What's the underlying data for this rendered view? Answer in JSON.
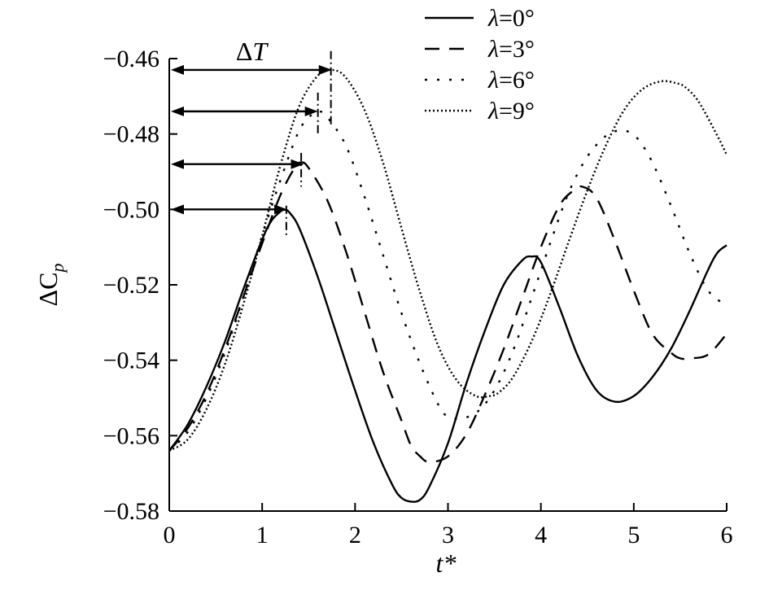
{
  "chart_data": {
    "type": "line",
    "title": "",
    "xlabel": "t*",
    "ylabel": "ΔCp",
    "ylabel_main": "ΔC",
    "ylabel_sub": "p",
    "xlim": [
      0,
      6
    ],
    "ylim": [
      -0.58,
      -0.46
    ],
    "x_ticks": [
      0,
      1,
      2,
      3,
      4,
      5,
      6
    ],
    "x_tick_labels": [
      "0",
      "1",
      "2",
      "3",
      "4",
      "5",
      "6"
    ],
    "y_ticks": [
      -0.46,
      -0.48,
      -0.5,
      -0.52,
      -0.54,
      -0.56,
      -0.58
    ],
    "y_tick_labels": [
      "−0.46",
      "−0.48",
      "−0.50",
      "−0.52",
      "−0.54",
      "−0.56",
      "−0.58"
    ],
    "grid": false,
    "legend_position": "top-right",
    "annotation": {
      "label": "ΔT",
      "label_main": "Δ",
      "label_italic": "T",
      "arrows": [
        {
          "y": -0.463,
          "x_end": 1.75
        },
        {
          "y": -0.474,
          "x_end": 1.6
        },
        {
          "y": -0.488,
          "x_end": 1.45
        },
        {
          "y": -0.5,
          "x_end": 1.27
        }
      ],
      "markers": [
        {
          "x": 1.74,
          "y_top": -0.458,
          "y_bottom": -0.478
        },
        {
          "x": 1.6,
          "y_top": -0.469,
          "y_bottom": -0.48
        },
        {
          "x": 1.42,
          "y_top": -0.485,
          "y_bottom": -0.494
        },
        {
          "x": 1.26,
          "y_top": -0.499,
          "y_bottom": -0.507
        }
      ]
    },
    "series": [
      {
        "name": "λ=0°",
        "legend_symbol": "λ",
        "legend_value": "=0°",
        "style": "solid",
        "x": [
          0.0,
          0.2,
          0.4,
          0.6,
          0.8,
          1.0,
          1.1,
          1.2,
          1.25,
          1.3,
          1.4,
          1.6,
          1.8,
          2.0,
          2.2,
          2.4,
          2.5,
          2.6,
          2.7,
          2.8,
          3.0,
          3.2,
          3.4,
          3.6,
          3.8,
          3.9,
          4.0,
          4.2,
          4.4,
          4.6,
          4.8,
          5.0,
          5.2,
          5.4,
          5.6,
          5.8,
          5.9,
          6.0
        ],
        "y": [
          -0.564,
          -0.557,
          -0.547,
          -0.535,
          -0.521,
          -0.508,
          -0.503,
          -0.5005,
          -0.5001,
          -0.501,
          -0.505,
          -0.518,
          -0.533,
          -0.548,
          -0.562,
          -0.573,
          -0.5765,
          -0.5775,
          -0.577,
          -0.5735,
          -0.562,
          -0.546,
          -0.532,
          -0.52,
          -0.5135,
          -0.5125,
          -0.514,
          -0.526,
          -0.539,
          -0.548,
          -0.551,
          -0.5495,
          -0.5445,
          -0.537,
          -0.527,
          -0.516,
          -0.5115,
          -0.5095
        ]
      },
      {
        "name": "λ=3°",
        "legend_symbol": "λ",
        "legend_value": "=3°",
        "style": "dashed",
        "x": [
          0.0,
          0.2,
          0.4,
          0.6,
          0.8,
          1.0,
          1.2,
          1.35,
          1.42,
          1.5,
          1.7,
          1.9,
          2.1,
          2.3,
          2.5,
          2.6,
          2.7,
          2.8,
          3.0,
          3.2,
          3.4,
          3.6,
          3.8,
          4.0,
          4.2,
          4.35,
          4.45,
          4.6,
          4.8,
          5.0,
          5.2,
          5.4,
          5.5,
          5.6,
          5.8,
          6.0
        ],
        "y": [
          -0.564,
          -0.558,
          -0.549,
          -0.537,
          -0.523,
          -0.509,
          -0.496,
          -0.489,
          -0.4875,
          -0.489,
          -0.4975,
          -0.511,
          -0.527,
          -0.543,
          -0.556,
          -0.5625,
          -0.5655,
          -0.567,
          -0.5655,
          -0.5595,
          -0.549,
          -0.537,
          -0.5235,
          -0.51,
          -0.499,
          -0.495,
          -0.494,
          -0.497,
          -0.5085,
          -0.5215,
          -0.533,
          -0.538,
          -0.5395,
          -0.5395,
          -0.5385,
          -0.533
        ]
      },
      {
        "name": "λ=6°",
        "legend_symbol": "λ",
        "legend_value": "=6°",
        "style": "dotted",
        "x": [
          0.0,
          0.2,
          0.4,
          0.6,
          0.8,
          1.0,
          1.2,
          1.4,
          1.55,
          1.62,
          1.7,
          1.9,
          2.1,
          2.3,
          2.5,
          2.7,
          2.9,
          3.0,
          3.1,
          3.3,
          3.5,
          3.7,
          3.9,
          4.1,
          4.3,
          4.5,
          4.7,
          4.85,
          4.95,
          5.05,
          5.2,
          5.4,
          5.6,
          5.8,
          6.0
        ],
        "y": [
          -0.564,
          -0.559,
          -0.55,
          -0.538,
          -0.523,
          -0.507,
          -0.492,
          -0.479,
          -0.4745,
          -0.474,
          -0.4755,
          -0.483,
          -0.4965,
          -0.512,
          -0.5275,
          -0.541,
          -0.552,
          -0.555,
          -0.5555,
          -0.554,
          -0.548,
          -0.5375,
          -0.5235,
          -0.509,
          -0.4955,
          -0.486,
          -0.4805,
          -0.479,
          -0.4795,
          -0.4815,
          -0.4875,
          -0.499,
          -0.5115,
          -0.5215,
          -0.5255
        ]
      },
      {
        "name": "λ=9°",
        "legend_symbol": "λ",
        "legend_value": "=9°",
        "style": "fine-dotted",
        "x": [
          0.0,
          0.2,
          0.4,
          0.6,
          0.8,
          1.0,
          1.2,
          1.4,
          1.6,
          1.75,
          1.9,
          2.1,
          2.3,
          2.5,
          2.7,
          2.9,
          3.1,
          3.3,
          3.45,
          3.55,
          3.7,
          3.9,
          4.1,
          4.3,
          4.5,
          4.7,
          4.9,
          5.1,
          5.3,
          5.45,
          5.55,
          5.7,
          5.9,
          6.0
        ],
        "y": [
          -0.564,
          -0.561,
          -0.553,
          -0.541,
          -0.525,
          -0.507,
          -0.488,
          -0.4725,
          -0.4645,
          -0.463,
          -0.465,
          -0.4735,
          -0.4875,
          -0.505,
          -0.522,
          -0.5365,
          -0.5455,
          -0.5495,
          -0.5495,
          -0.5485,
          -0.5445,
          -0.535,
          -0.5225,
          -0.5085,
          -0.495,
          -0.483,
          -0.4735,
          -0.468,
          -0.466,
          -0.4665,
          -0.4675,
          -0.4715,
          -0.4805,
          -0.4855
        ]
      }
    ]
  }
}
